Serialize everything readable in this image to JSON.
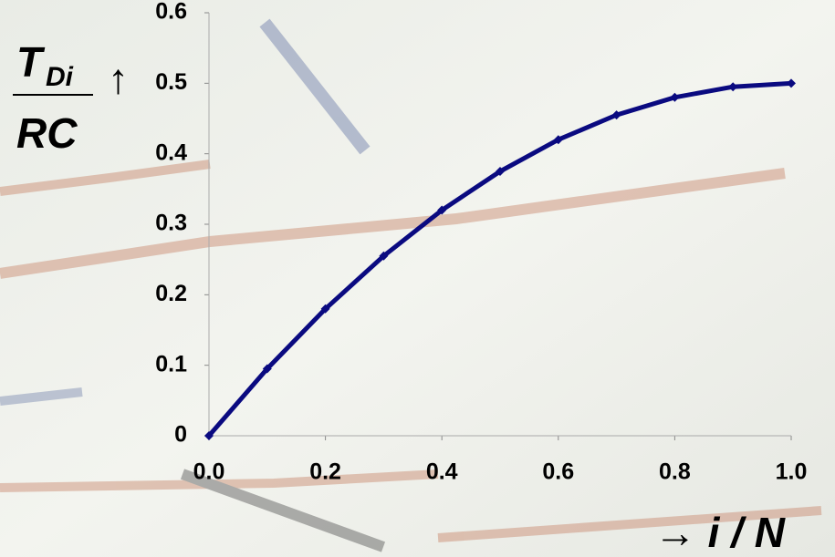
{
  "chart_data": {
    "type": "line",
    "ylabel": {
      "main": "T",
      "subscript": "Di",
      "denominator": "RC",
      "arrow": "↑"
    },
    "xlabel": "→ i / N",
    "x": [
      0,
      0.1,
      0.2,
      0.3,
      0.4,
      0.5,
      0.6,
      0.7,
      0.8,
      0.9,
      1.0
    ],
    "series": [
      {
        "color": "#0a0a80",
        "values": [
          0,
          0.095,
          0.18,
          0.255,
          0.32,
          0.375,
          0.42,
          0.455,
          0.48,
          0.495,
          0.5
        ]
      }
    ],
    "xlim": [
      0,
      1
    ],
    "ylim": [
      0,
      0.6
    ],
    "xticks": [
      {
        "value": 0,
        "label": "0.0"
      },
      {
        "value": 0.2,
        "label": "0.2"
      },
      {
        "value": 0.4,
        "label": "0.4"
      },
      {
        "value": 0.6,
        "label": "0.6"
      },
      {
        "value": 0.8,
        "label": "0.8"
      },
      {
        "value": 1,
        "label": "1.0"
      }
    ],
    "yticks": [
      0,
      0.1,
      0.2,
      0.3,
      0.4,
      0.5,
      0.6
    ]
  }
}
